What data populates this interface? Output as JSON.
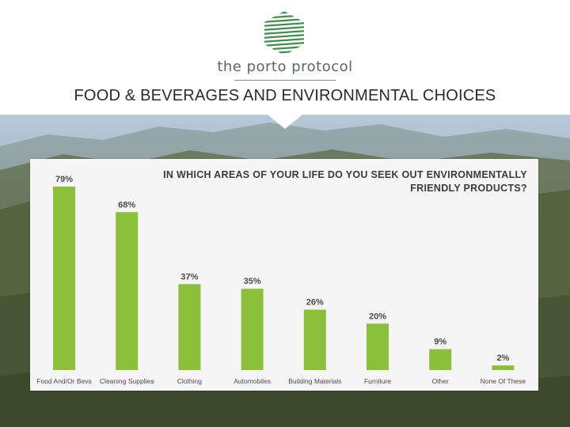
{
  "header": {
    "logo_text": "the porto protocol",
    "title": "FOOD & BEVERAGES AND ENVIRONMENTAL CHOICES"
  },
  "colors": {
    "bar": "#8dc03a",
    "label": "#4a4a4a",
    "panel": "#f5f5f5",
    "logo": "#3f8f4a"
  },
  "chart_data": {
    "type": "bar",
    "title": "IN WHICH AREAS OF YOUR LIFE DO YOU SEEK OUT ENVIRONMENTALLY FRIENDLY PRODUCTS?",
    "categories": [
      "Food And/Or Bevs",
      "Cleaning Supplies",
      "Clothing",
      "Automobiles",
      "Building Materials",
      "Furniture",
      "Other",
      "None Of These"
    ],
    "values": [
      79,
      68,
      37,
      35,
      26,
      20,
      9,
      2
    ],
    "data_labels": [
      "79%",
      "68%",
      "37%",
      "35%",
      "26%",
      "20%",
      "9%",
      "2%"
    ],
    "xlabel": "",
    "ylabel": "",
    "ylim": [
      0,
      80
    ],
    "grid": false,
    "legend": "none"
  }
}
